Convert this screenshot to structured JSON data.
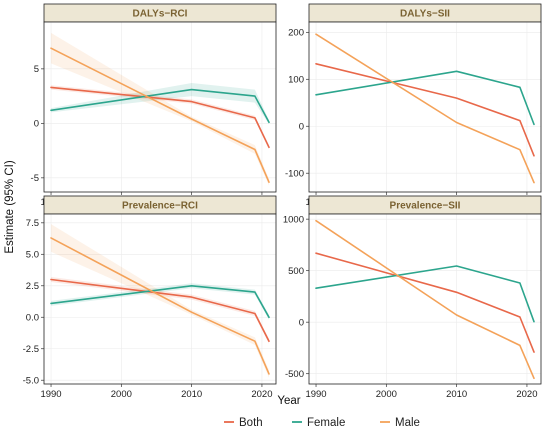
{
  "chart_data": {
    "type": "line",
    "xlabel": "Year",
    "ylabel": "Estimate (95% CI)",
    "x": [
      1990,
      2010,
      2019,
      2021
    ],
    "x_ticks": [
      1990,
      2000,
      2010,
      2020
    ],
    "x_range": [
      1989,
      2022
    ],
    "grid": true,
    "legend_position": "bottom",
    "legend": [
      {
        "name": "Both",
        "color": "#e8684a"
      },
      {
        "name": "Female",
        "color": "#2ca58d"
      },
      {
        "name": "Male",
        "color": "#f4a259"
      }
    ],
    "panels": [
      {
        "title": "DALYs−RCI",
        "ylim": [
          -6.3,
          9.3
        ],
        "y_ticks": [
          -5,
          0,
          5
        ],
        "y_tick_labels": [
          "-5",
          "0",
          "5"
        ],
        "series": [
          {
            "name": "Both",
            "values": [
              3.3,
              2.0,
              0.5,
              -2.2
            ],
            "ci_lower": [
              3.1,
              1.8,
              0.3,
              -2.4
            ],
            "ci_upper": [
              3.5,
              2.2,
              0.7,
              -2.0
            ]
          },
          {
            "name": "Female",
            "values": [
              1.2,
              3.1,
              2.5,
              0.1
            ],
            "ci_lower": [
              1.0,
              2.5,
              1.9,
              -0.1
            ],
            "ci_upper": [
              1.4,
              3.7,
              3.1,
              0.3
            ]
          },
          {
            "name": "Male",
            "values": [
              6.9,
              0.4,
              -2.4,
              -5.4
            ],
            "ci_lower": [
              5.5,
              0.2,
              -2.8,
              -5.7
            ],
            "ci_upper": [
              8.3,
              0.6,
              -2.0,
              -5.1
            ]
          }
        ]
      },
      {
        "title": "DALYs−SII",
        "ylim": [
          -140,
          222
        ],
        "y_ticks": [
          -100,
          0,
          100,
          200
        ],
        "y_tick_labels": [
          "-100",
          "0",
          "100",
          "200"
        ],
        "series": [
          {
            "name": "Both",
            "values": [
              133,
              60,
              12,
              -63
            ]
          },
          {
            "name": "Female",
            "values": [
              67,
              117,
              83,
              4
            ]
          },
          {
            "name": "Male",
            "values": [
              196,
              8,
              -50,
              -120
            ]
          }
        ]
      },
      {
        "title": "Prevalence−RCI",
        "ylim": [
          -5.3,
          8.2
        ],
        "y_ticks": [
          -5.0,
          -2.5,
          0.0,
          2.5,
          5.0,
          7.5
        ],
        "y_tick_labels": [
          "-5.0",
          "-2.5",
          "0.0",
          "2.5",
          "5.0",
          "7.5"
        ],
        "series": [
          {
            "name": "Both",
            "values": [
              3.0,
              1.6,
              0.3,
              -1.9
            ],
            "ci_lower": [
              2.8,
              1.4,
              0.1,
              -2.1
            ],
            "ci_upper": [
              3.2,
              1.8,
              0.5,
              -1.7
            ]
          },
          {
            "name": "Female",
            "values": [
              1.1,
              2.5,
              2.0,
              0.0
            ],
            "ci_lower": [
              0.9,
              2.3,
              1.8,
              -0.2
            ],
            "ci_upper": [
              1.3,
              2.7,
              2.2,
              0.2
            ]
          },
          {
            "name": "Male",
            "values": [
              6.3,
              0.4,
              -1.9,
              -4.5
            ],
            "ci_lower": [
              5.2,
              0.2,
              -2.2,
              -4.8
            ],
            "ci_upper": [
              7.4,
              0.6,
              -1.6,
              -4.2
            ]
          }
        ]
      },
      {
        "title": "Prevalence−SII",
        "ylim": [
          -600,
          1050
        ],
        "y_ticks": [
          -500,
          0,
          500,
          1000
        ],
        "y_tick_labels": [
          "-500",
          "0",
          "500",
          "1000"
        ],
        "series": [
          {
            "name": "Both",
            "values": [
              670,
              290,
              50,
              -290
            ]
          },
          {
            "name": "Female",
            "values": [
              330,
              545,
              380,
              5
            ]
          },
          {
            "name": "Male",
            "values": [
              985,
              70,
              -225,
              -545
            ]
          }
        ]
      }
    ]
  }
}
